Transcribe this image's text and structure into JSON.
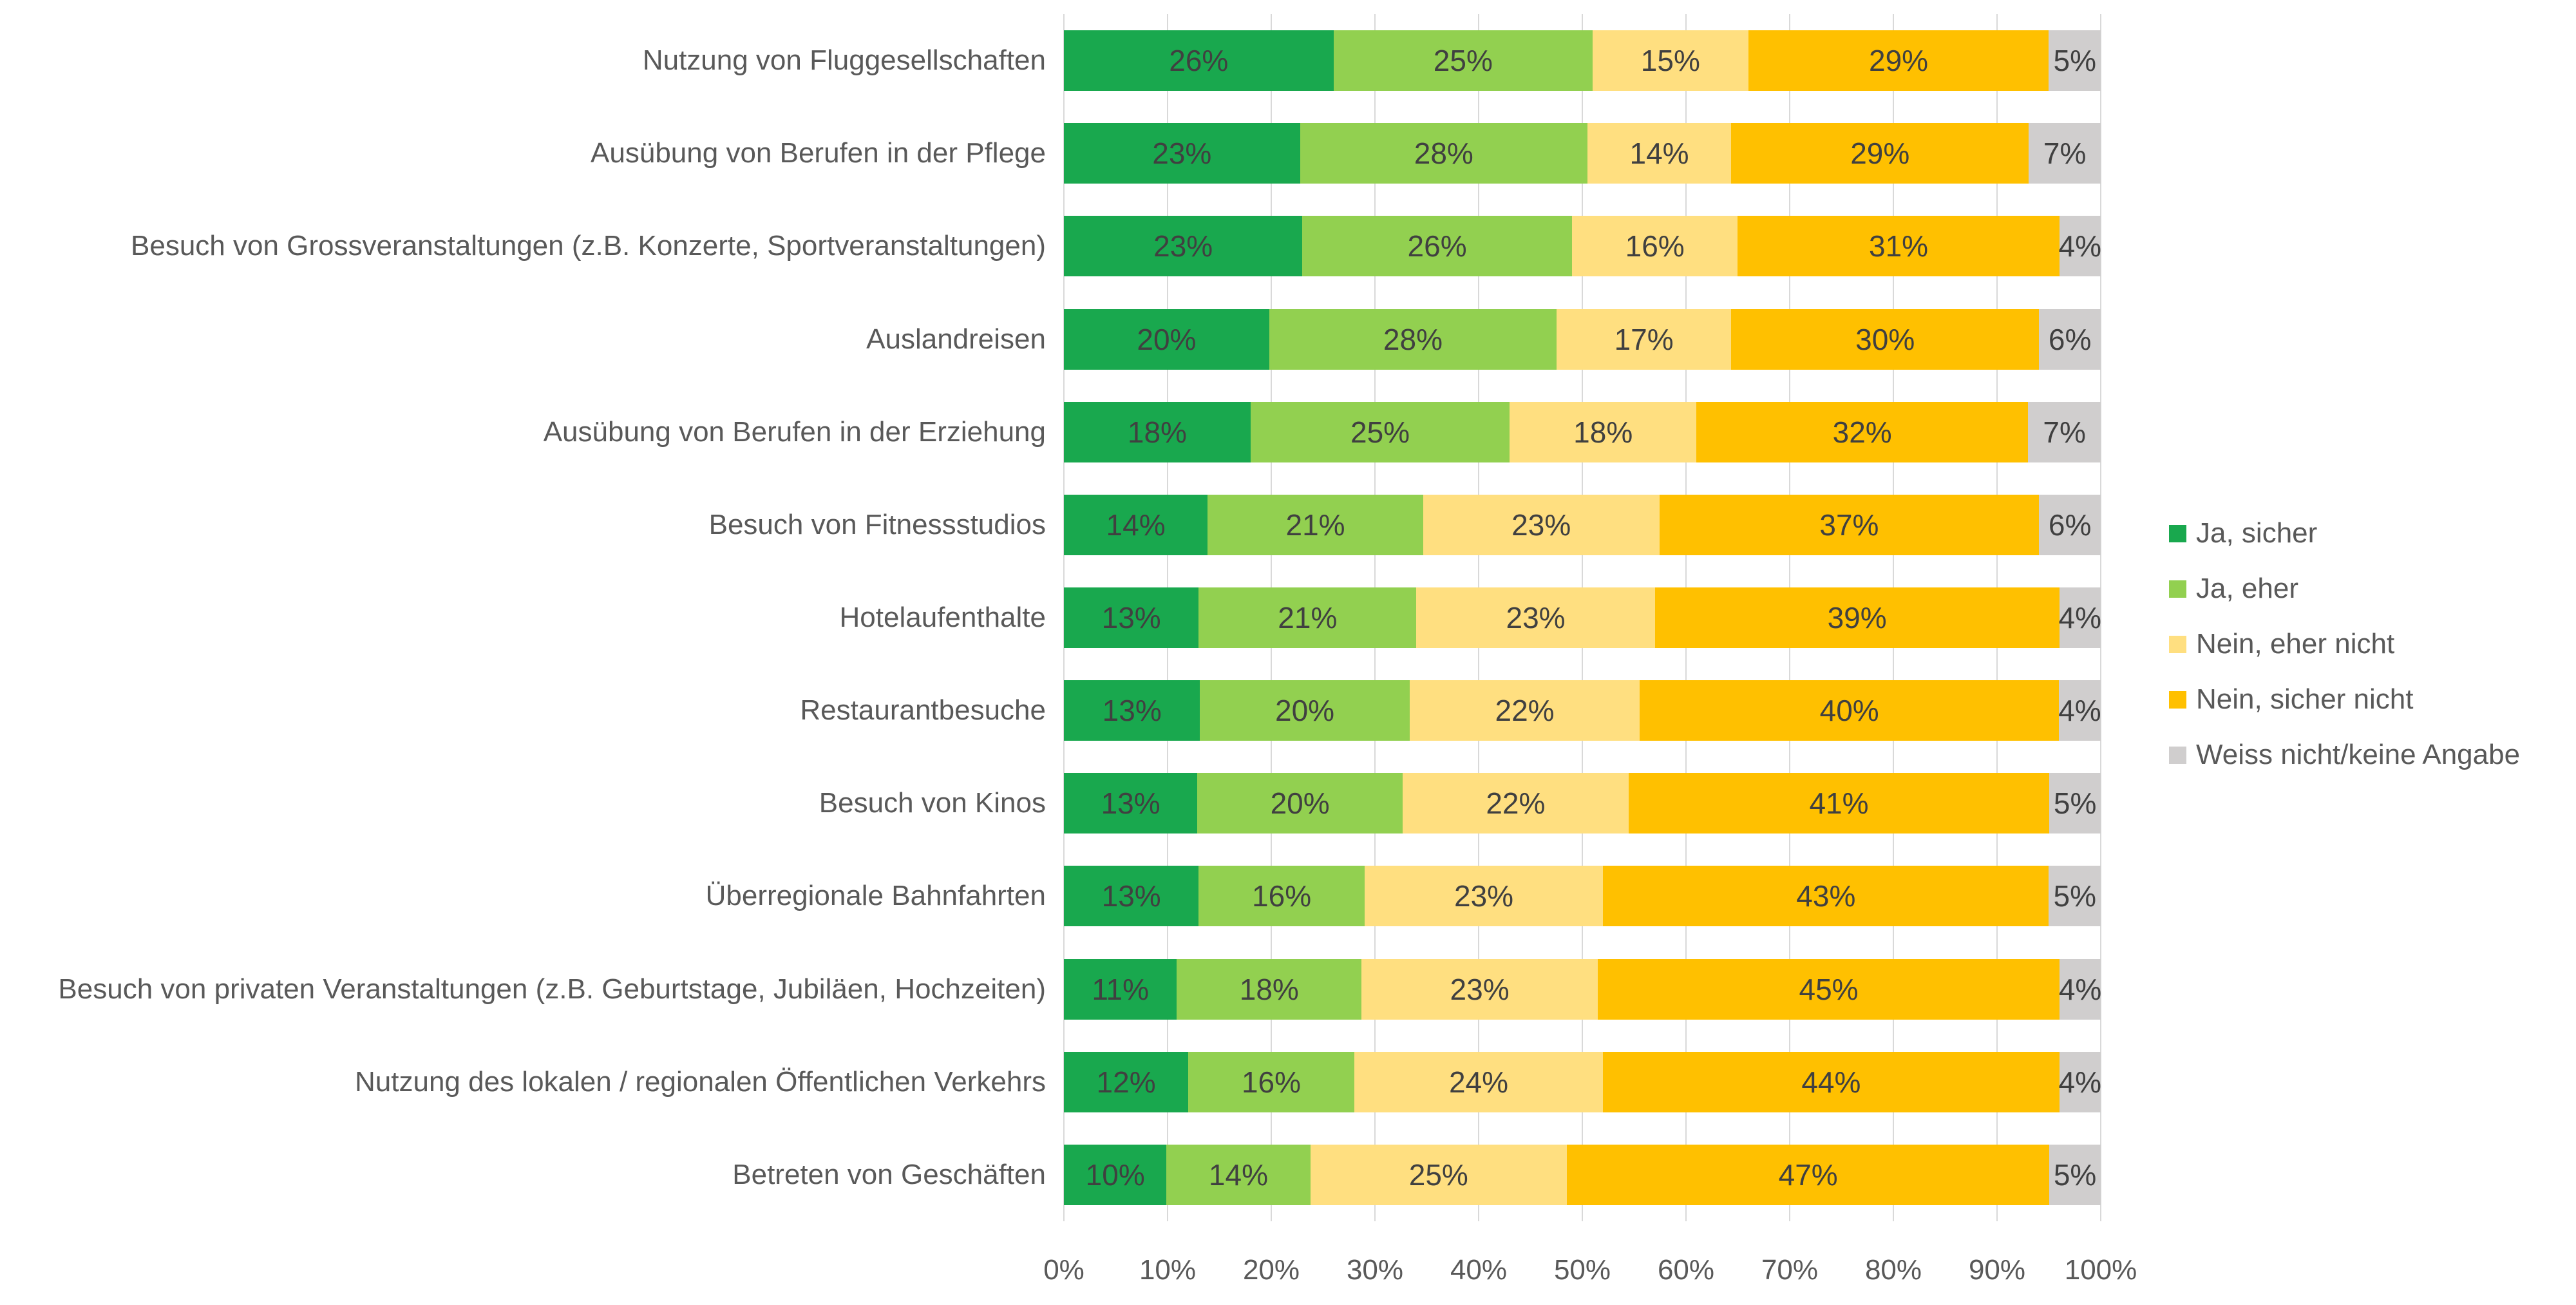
{
  "chart_data": {
    "type": "bar",
    "orientation": "horizontal-stacked",
    "title": "",
    "xlabel": "",
    "ylabel": "",
    "xlim": [
      0,
      100
    ],
    "grid": true,
    "data_labels": true,
    "value_suffix": "%",
    "legend_position": "right",
    "x_ticks": [
      "0%",
      "10%",
      "20%",
      "30%",
      "40%",
      "50%",
      "60%",
      "70%",
      "80%",
      "90%",
      "100%"
    ],
    "categories": [
      "Nutzung von Fluggesellschaften",
      "Ausübung von Berufen in der Pflege",
      "Besuch von Grossveranstaltungen (z.B. Konzerte, Sportveranstaltungen)",
      "Auslandreisen",
      "Ausübung von Berufen in der Erziehung",
      "Besuch von Fitnessstudios",
      "Hotelaufenthalte",
      "Restaurantbesuche",
      "Besuch von Kinos",
      "Überregionale Bahnfahrten",
      "Besuch von privaten Veranstaltungen (z.B. Geburtstage, Jubiläen, Hochzeiten)",
      "Nutzung des lokalen / regionalen Öffentlichen Verkehrs",
      "Betreten von Geschäften"
    ],
    "series": [
      {
        "name": "Ja, sicher",
        "color": "#19A84E",
        "values": [
          26,
          23,
          23,
          20,
          18,
          14,
          13,
          13,
          13,
          13,
          11,
          12,
          10
        ]
      },
      {
        "name": "Ja, eher",
        "color": "#92D050",
        "values": [
          25,
          28,
          26,
          28,
          25,
          21,
          21,
          20,
          20,
          16,
          18,
          16,
          14
        ]
      },
      {
        "name": "Nein, eher nicht",
        "color": "#FFDF80",
        "values": [
          15,
          14,
          16,
          17,
          18,
          23,
          23,
          22,
          22,
          23,
          23,
          24,
          25
        ]
      },
      {
        "name": "Nein, sicher nicht",
        "color": "#FFC000",
        "values": [
          29,
          29,
          31,
          30,
          32,
          37,
          39,
          40,
          41,
          43,
          45,
          44,
          47
        ]
      },
      {
        "name": "Weiss nicht/keine Angabe",
        "color": "#D0CECE",
        "values": [
          5,
          7,
          4,
          6,
          7,
          6,
          4,
          4,
          5,
          5,
          4,
          4,
          5
        ]
      }
    ],
    "colors": {
      "grid_line": "#D9D9D9",
      "bar_value_text": "#404040",
      "axis_text": "#595959"
    }
  }
}
